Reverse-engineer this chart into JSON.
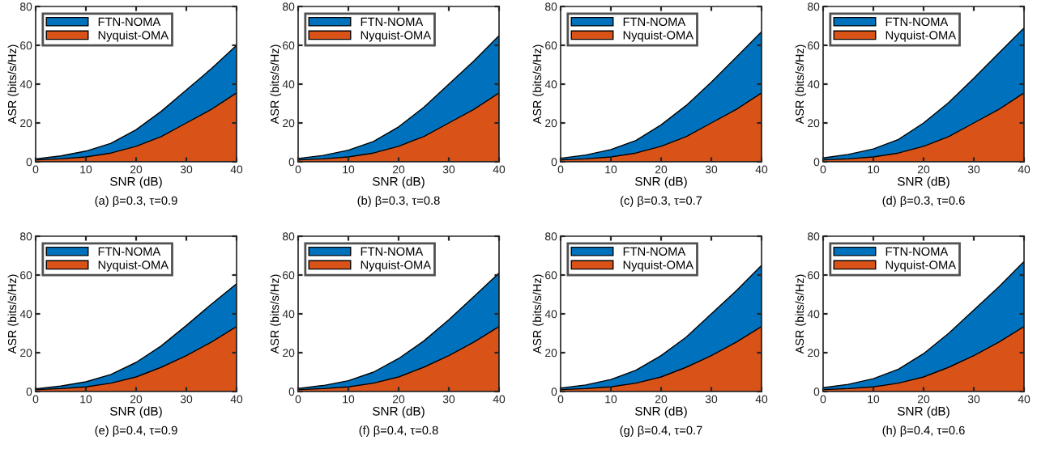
{
  "chart_data": [
    {
      "type": "area",
      "xlabel": "SNR (dB)",
      "ylabel": "ASR (bits/s/Hz)",
      "annotations": [
        "(a) β=0.3, τ=0.9"
      ],
      "x": [
        0,
        5,
        10,
        15,
        20,
        25,
        30,
        35,
        40
      ],
      "xlim": [
        0,
        40
      ],
      "xticks": [
        0,
        10,
        20,
        30,
        40
      ],
      "ylim": [
        0,
        80
      ],
      "yticks": [
        0,
        20,
        40,
        60,
        80
      ],
      "legend": "top left",
      "series": [
        {
          "name": "FTN-NOMA",
          "color": "#0072bd",
          "values": [
            1.5,
            3,
            5.5,
            9.5,
            16.5,
            26,
            37,
            48,
            60
          ]
        },
        {
          "name": "Nyquist-OMA",
          "color": "#d95319",
          "values": [
            1,
            1.5,
            2.5,
            4.5,
            8,
            13,
            20,
            27,
            35.5
          ]
        }
      ]
    },
    {
      "type": "area",
      "xlabel": "SNR (dB)",
      "ylabel": "ASR (bits/s/Hz)",
      "annotations": [
        "(b) β=0.3, τ=0.8"
      ],
      "x": [
        0,
        5,
        10,
        15,
        20,
        25,
        30,
        35,
        40
      ],
      "xlim": [
        0,
        40
      ],
      "xticks": [
        0,
        10,
        20,
        30,
        40
      ],
      "ylim": [
        0,
        80
      ],
      "yticks": [
        0,
        20,
        40,
        60,
        80
      ],
      "legend": "top left",
      "series": [
        {
          "name": "FTN-NOMA",
          "color": "#0072bd",
          "values": [
            1.7,
            3.3,
            6,
            10.5,
            18,
            28,
            40,
            52,
            65
          ]
        },
        {
          "name": "Nyquist-OMA",
          "color": "#d95319",
          "values": [
            1,
            1.5,
            2.5,
            4.5,
            8,
            13,
            20,
            27,
            35.5
          ]
        }
      ]
    },
    {
      "type": "area",
      "xlabel": "SNR (dB)",
      "ylabel": "ASR (bits/s/Hz)",
      "annotations": [
        "(c) β=0.3, τ=0.7"
      ],
      "x": [
        0,
        5,
        10,
        15,
        20,
        25,
        30,
        35,
        40
      ],
      "xlim": [
        0,
        40
      ],
      "xticks": [
        0,
        10,
        20,
        30,
        40
      ],
      "ylim": [
        0,
        80
      ],
      "yticks": [
        0,
        20,
        40,
        60,
        80
      ],
      "legend": "top left",
      "series": [
        {
          "name": "FTN-NOMA",
          "color": "#0072bd",
          "values": [
            1.8,
            3.5,
            6.3,
            11,
            19,
            29,
            41,
            54,
            67
          ]
        },
        {
          "name": "Nyquist-OMA",
          "color": "#d95319",
          "values": [
            1,
            1.5,
            2.5,
            4.5,
            8,
            13,
            20,
            27,
            35.5
          ]
        }
      ]
    },
    {
      "type": "area",
      "xlabel": "SNR (dB)",
      "ylabel": "ASR (bits/s/Hz)",
      "annotations": [
        "(d) β=0.3, τ=0.6"
      ],
      "x": [
        0,
        5,
        10,
        15,
        20,
        25,
        30,
        35,
        40
      ],
      "xlim": [
        0,
        40
      ],
      "xticks": [
        0,
        10,
        20,
        30,
        40
      ],
      "ylim": [
        0,
        80
      ],
      "yticks": [
        0,
        20,
        40,
        60,
        80
      ],
      "legend": "top left",
      "series": [
        {
          "name": "FTN-NOMA",
          "color": "#0072bd",
          "values": [
            2,
            3.8,
            6.6,
            11.5,
            20,
            30.5,
            43,
            56,
            69
          ]
        },
        {
          "name": "Nyquist-OMA",
          "color": "#d95319",
          "values": [
            1,
            1.5,
            2.5,
            4.5,
            8,
            13,
            20,
            27,
            35.5
          ]
        }
      ]
    },
    {
      "type": "area",
      "xlabel": "SNR (dB)",
      "ylabel": "ASR (bits/s/Hz)",
      "annotations": [
        "(e) β=0.4, τ=0.9"
      ],
      "x": [
        0,
        5,
        10,
        15,
        20,
        25,
        30,
        35,
        40
      ],
      "xlim": [
        0,
        40
      ],
      "xticks": [
        0,
        10,
        20,
        30,
        40
      ],
      "ylim": [
        0,
        80
      ],
      "yticks": [
        0,
        20,
        40,
        60,
        80
      ],
      "legend": "top left",
      "series": [
        {
          "name": "FTN-NOMA",
          "color": "#0072bd",
          "values": [
            1.4,
            2.8,
            5,
            8.8,
            15,
            23.5,
            34,
            45,
            55.5
          ]
        },
        {
          "name": "Nyquist-OMA",
          "color": "#d95319",
          "values": [
            1,
            1.5,
            2.4,
            4.3,
            7.5,
            12.5,
            18.5,
            25.5,
            33.5
          ]
        }
      ]
    },
    {
      "type": "area",
      "xlabel": "SNR (dB)",
      "ylabel": "ASR (bits/s/Hz)",
      "annotations": [
        "(f) β=0.4, τ=0.8"
      ],
      "x": [
        0,
        5,
        10,
        15,
        20,
        25,
        30,
        35,
        40
      ],
      "xlim": [
        0,
        40
      ],
      "xticks": [
        0,
        10,
        20,
        30,
        40
      ],
      "ylim": [
        0,
        80
      ],
      "yticks": [
        0,
        20,
        40,
        60,
        80
      ],
      "legend": "top left",
      "series": [
        {
          "name": "FTN-NOMA",
          "color": "#0072bd",
          "values": [
            1.6,
            3.1,
            5.6,
            10,
            17,
            26,
            37,
            49,
            61
          ]
        },
        {
          "name": "Nyquist-OMA",
          "color": "#d95319",
          "values": [
            1,
            1.5,
            2.4,
            4.3,
            7.5,
            12.5,
            18.5,
            25.5,
            33.5
          ]
        }
      ]
    },
    {
      "type": "area",
      "xlabel": "SNR (dB)",
      "ylabel": "ASR (bits/s/Hz)",
      "annotations": [
        "(g) β=0.4, τ=0.7"
      ],
      "x": [
        0,
        5,
        10,
        15,
        20,
        25,
        30,
        35,
        40
      ],
      "xlim": [
        0,
        40
      ],
      "xticks": [
        0,
        10,
        20,
        30,
        40
      ],
      "ylim": [
        0,
        80
      ],
      "yticks": [
        0,
        20,
        40,
        60,
        80
      ],
      "legend": "top left",
      "series": [
        {
          "name": "FTN-NOMA",
          "color": "#0072bd",
          "values": [
            1.8,
            3.4,
            6.2,
            11,
            18.5,
            28,
            40,
            52,
            65
          ]
        },
        {
          "name": "Nyquist-OMA",
          "color": "#d95319",
          "values": [
            1,
            1.5,
            2.4,
            4.3,
            7.5,
            12.5,
            18.5,
            25.5,
            33.5
          ]
        }
      ]
    },
    {
      "type": "area",
      "xlabel": "SNR (dB)",
      "ylabel": "ASR (bits/s/Hz)",
      "annotations": [
        "(h) β=0.4, τ=0.6"
      ],
      "x": [
        0,
        5,
        10,
        15,
        20,
        25,
        30,
        35,
        40
      ],
      "xlim": [
        0,
        40
      ],
      "xticks": [
        0,
        10,
        20,
        30,
        40
      ],
      "ylim": [
        0,
        80
      ],
      "yticks": [
        0,
        20,
        40,
        60,
        80
      ],
      "legend": "top left",
      "series": [
        {
          "name": "FTN-NOMA",
          "color": "#0072bd",
          "values": [
            2,
            3.7,
            6.6,
            11.5,
            19.5,
            30,
            42,
            54,
            67
          ]
        },
        {
          "name": "Nyquist-OMA",
          "color": "#d95319",
          "values": [
            1,
            1.5,
            2.4,
            4.3,
            7.5,
            12.5,
            18.5,
            25.5,
            33.5
          ]
        }
      ]
    }
  ]
}
